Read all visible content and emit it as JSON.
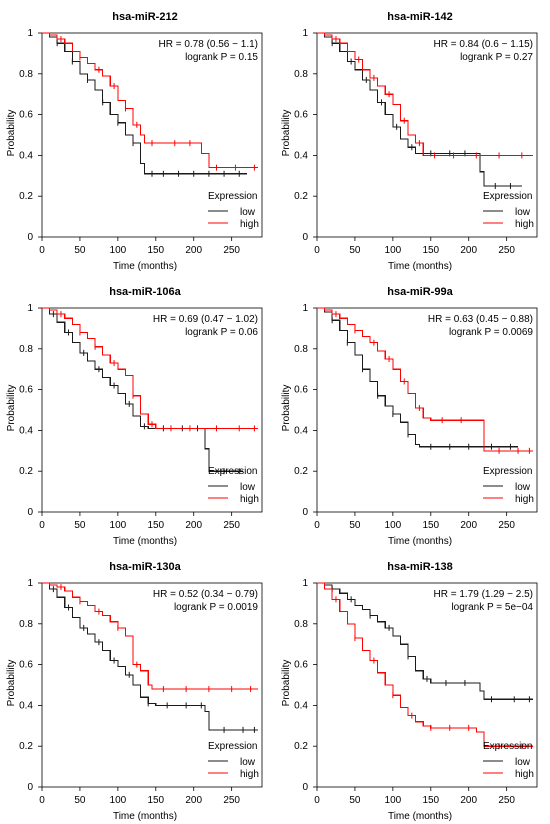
{
  "colors": {
    "low": "#1a1a1a",
    "high": "#ff0000"
  },
  "chart_data": [
    {
      "type": "line",
      "title": "hsa-miR-212",
      "xlabel": "Time (months)",
      "ylabel": "Probability",
      "xlim": [
        0,
        290
      ],
      "ylim": [
        0,
        1
      ],
      "xticks": [
        0,
        50,
        100,
        150,
        200,
        250
      ],
      "yticks": [
        0.0,
        0.2,
        0.4,
        0.6,
        0.8,
        1.0
      ],
      "stats": [
        "HR = 0.78 (0.56 − 1.1)",
        "logrank P = 0.15"
      ],
      "legend": {
        "title": "Expression",
        "position": "bottom-right",
        "entries": [
          "low",
          "high"
        ]
      },
      "series": [
        {
          "name": "low",
          "color": "#1a1a1a",
          "x": [
            0,
            10,
            20,
            30,
            40,
            50,
            60,
            70,
            80,
            90,
            100,
            110,
            120,
            130,
            135,
            140,
            170,
            270
          ],
          "y": [
            1.0,
            0.98,
            0.95,
            0.91,
            0.86,
            0.8,
            0.77,
            0.72,
            0.66,
            0.6,
            0.56,
            0.5,
            0.46,
            0.36,
            0.31,
            0.31,
            0.31,
            0.31
          ],
          "censor_x": [
            20,
            40,
            60,
            80,
            100,
            120,
            145,
            160,
            180,
            200,
            220,
            240,
            260
          ]
        },
        {
          "name": "high",
          "color": "#ff0000",
          "x": [
            0,
            10,
            20,
            30,
            40,
            50,
            60,
            70,
            80,
            90,
            100,
            110,
            120,
            130,
            135,
            160,
            200,
            210,
            220,
            285
          ],
          "y": [
            1.0,
            0.99,
            0.97,
            0.95,
            0.91,
            0.88,
            0.85,
            0.82,
            0.79,
            0.74,
            0.67,
            0.63,
            0.55,
            0.5,
            0.46,
            0.46,
            0.46,
            0.41,
            0.34,
            0.34
          ],
          "censor_x": [
            25,
            50,
            75,
            95,
            110,
            125,
            145,
            175,
            195,
            230,
            255,
            280
          ]
        }
      ]
    },
    {
      "type": "line",
      "title": "hsa-miR-142",
      "xlabel": "Time (months)",
      "ylabel": "Probability",
      "xlim": [
        0,
        290
      ],
      "ylim": [
        0,
        1
      ],
      "xticks": [
        0,
        50,
        100,
        150,
        200,
        250
      ],
      "yticks": [
        0.0,
        0.2,
        0.4,
        0.6,
        0.8,
        1.0
      ],
      "stats": [
        "HR = 0.84 (0.6 − 1.15)",
        "logrank P = 0.27"
      ],
      "legend": {
        "title": "Expression",
        "position": "bottom-right",
        "entries": [
          "low",
          "high"
        ]
      },
      "series": [
        {
          "name": "low",
          "color": "#1a1a1a",
          "x": [
            0,
            10,
            20,
            30,
            40,
            50,
            60,
            70,
            80,
            90,
            100,
            110,
            120,
            130,
            140,
            200,
            215,
            220,
            270
          ],
          "y": [
            1.0,
            0.98,
            0.95,
            0.91,
            0.86,
            0.82,
            0.77,
            0.72,
            0.66,
            0.6,
            0.54,
            0.48,
            0.44,
            0.41,
            0.41,
            0.41,
            0.32,
            0.25,
            0.25
          ],
          "censor_x": [
            20,
            45,
            65,
            85,
            105,
            125,
            150,
            175,
            195,
            235,
            255
          ]
        },
        {
          "name": "high",
          "color": "#ff0000",
          "x": [
            0,
            10,
            20,
            30,
            40,
            50,
            60,
            70,
            80,
            90,
            100,
            110,
            120,
            130,
            140,
            285
          ],
          "y": [
            1.0,
            0.99,
            0.97,
            0.95,
            0.91,
            0.87,
            0.82,
            0.78,
            0.74,
            0.7,
            0.65,
            0.57,
            0.5,
            0.46,
            0.4,
            0.4
          ],
          "censor_x": [
            25,
            55,
            75,
            95,
            115,
            135,
            155,
            180,
            210,
            240,
            270
          ]
        }
      ]
    },
    {
      "type": "line",
      "title": "hsa-miR-106a",
      "xlabel": "Time (months)",
      "ylabel": "Probability",
      "xlim": [
        0,
        290
      ],
      "ylim": [
        0,
        1
      ],
      "xticks": [
        0,
        50,
        100,
        150,
        200,
        250
      ],
      "yticks": [
        0.0,
        0.2,
        0.4,
        0.6,
        0.8,
        1.0
      ],
      "stats": [
        "HR = 0.69 (0.47 − 1.02)",
        "logrank P = 0.06"
      ],
      "legend": {
        "title": "Expression",
        "position": "bottom-right",
        "entries": [
          "low",
          "high"
        ]
      },
      "series": [
        {
          "name": "low",
          "color": "#1a1a1a",
          "x": [
            0,
            10,
            20,
            30,
            40,
            50,
            60,
            70,
            80,
            90,
            100,
            110,
            120,
            130,
            140,
            150,
            200,
            215,
            220,
            265
          ],
          "y": [
            1.0,
            0.97,
            0.93,
            0.88,
            0.83,
            0.78,
            0.74,
            0.7,
            0.66,
            0.62,
            0.58,
            0.53,
            0.47,
            0.42,
            0.41,
            0.41,
            0.41,
            0.31,
            0.2,
            0.2
          ],
          "censor_x": [
            15,
            35,
            55,
            75,
            95,
            115,
            135,
            160,
            185,
            205,
            240,
            260
          ]
        },
        {
          "name": "high",
          "color": "#ff0000",
          "x": [
            0,
            10,
            20,
            30,
            40,
            50,
            60,
            70,
            80,
            90,
            100,
            110,
            120,
            130,
            140,
            150,
            285
          ],
          "y": [
            1.0,
            0.99,
            0.97,
            0.95,
            0.92,
            0.88,
            0.85,
            0.81,
            0.77,
            0.73,
            0.7,
            0.67,
            0.57,
            0.48,
            0.43,
            0.41,
            0.41
          ],
          "censor_x": [
            25,
            50,
            70,
            95,
            120,
            145,
            170,
            195,
            230,
            260,
            280
          ]
        }
      ]
    },
    {
      "type": "line",
      "title": "hsa-miR-99a",
      "xlabel": "Time (months)",
      "ylabel": "Probability",
      "xlim": [
        0,
        290
      ],
      "ylim": [
        0,
        1
      ],
      "xticks": [
        0,
        50,
        100,
        150,
        200,
        250
      ],
      "yticks": [
        0.0,
        0.2,
        0.4,
        0.6,
        0.8,
        1.0
      ],
      "stats": [
        "HR = 0.63 (0.45 − 0.88)",
        "logrank P = 0.0069"
      ],
      "legend": {
        "title": "Expression",
        "position": "bottom-right",
        "entries": [
          "low",
          "high"
        ]
      },
      "series": [
        {
          "name": "low",
          "color": "#1a1a1a",
          "x": [
            0,
            10,
            20,
            30,
            40,
            50,
            60,
            70,
            80,
            90,
            100,
            110,
            120,
            130,
            135,
            145,
            265
          ],
          "y": [
            1.0,
            0.98,
            0.94,
            0.89,
            0.83,
            0.77,
            0.7,
            0.64,
            0.57,
            0.52,
            0.48,
            0.44,
            0.38,
            0.33,
            0.32,
            0.32,
            0.32
          ],
          "censor_x": [
            20,
            40,
            60,
            80,
            100,
            120,
            150,
            175,
            200,
            230,
            255
          ]
        },
        {
          "name": "high",
          "color": "#ff0000",
          "x": [
            0,
            10,
            20,
            30,
            40,
            50,
            60,
            70,
            80,
            90,
            100,
            110,
            120,
            130,
            140,
            150,
            215,
            220,
            285
          ],
          "y": [
            1.0,
            0.99,
            0.97,
            0.95,
            0.92,
            0.89,
            0.86,
            0.83,
            0.79,
            0.75,
            0.7,
            0.64,
            0.58,
            0.51,
            0.46,
            0.45,
            0.45,
            0.3,
            0.3
          ],
          "censor_x": [
            25,
            50,
            75,
            95,
            115,
            135,
            165,
            190,
            240,
            265,
            280
          ]
        }
      ]
    },
    {
      "type": "line",
      "title": "hsa-miR-130a",
      "xlabel": "Time (months)",
      "ylabel": "Probability",
      "xlim": [
        0,
        290
      ],
      "ylim": [
        0,
        1
      ],
      "xticks": [
        0,
        50,
        100,
        150,
        200,
        250
      ],
      "yticks": [
        0.0,
        0.2,
        0.4,
        0.6,
        0.8,
        1.0
      ],
      "stats": [
        "HR = 0.52 (0.34 − 0.79)",
        "logrank P = 0.0019"
      ],
      "legend": {
        "title": "Expression",
        "position": "bottom-right",
        "entries": [
          "low",
          "high"
        ]
      },
      "series": [
        {
          "name": "low",
          "color": "#1a1a1a",
          "x": [
            0,
            10,
            20,
            30,
            40,
            50,
            60,
            70,
            80,
            90,
            100,
            110,
            120,
            130,
            140,
            150,
            200,
            215,
            220,
            285
          ],
          "y": [
            1.0,
            0.97,
            0.93,
            0.88,
            0.83,
            0.78,
            0.75,
            0.71,
            0.67,
            0.62,
            0.59,
            0.55,
            0.5,
            0.44,
            0.41,
            0.4,
            0.4,
            0.37,
            0.28,
            0.28
          ],
          "censor_x": [
            15,
            35,
            55,
            75,
            95,
            115,
            140,
            165,
            190,
            210,
            240,
            265,
            280
          ]
        },
        {
          "name": "high",
          "color": "#ff0000",
          "x": [
            0,
            10,
            20,
            30,
            40,
            50,
            60,
            70,
            80,
            90,
            100,
            110,
            120,
            130,
            140,
            145,
            285
          ],
          "y": [
            1.0,
            0.99,
            0.98,
            0.96,
            0.93,
            0.91,
            0.89,
            0.86,
            0.84,
            0.81,
            0.78,
            0.74,
            0.6,
            0.57,
            0.5,
            0.48,
            0.48
          ],
          "censor_x": [
            25,
            50,
            75,
            100,
            125,
            160,
            190,
            220,
            250,
            275
          ]
        }
      ]
    },
    {
      "type": "line",
      "title": "hsa-miR-138",
      "xlabel": "Time (months)",
      "ylabel": "Probability",
      "xlim": [
        0,
        290
      ],
      "ylim": [
        0,
        1
      ],
      "xticks": [
        0,
        50,
        100,
        150,
        200,
        250
      ],
      "yticks": [
        0.0,
        0.2,
        0.4,
        0.6,
        0.8,
        1.0
      ],
      "stats": [
        "HR = 1.79 (1.29 − 2.5)",
        "logrank P = 5e−04"
      ],
      "legend": {
        "title": "Expression",
        "position": "bottom-right",
        "entries": [
          "low",
          "high"
        ]
      },
      "series": [
        {
          "name": "low",
          "color": "#1a1a1a",
          "x": [
            0,
            10,
            20,
            30,
            40,
            50,
            60,
            70,
            80,
            90,
            100,
            110,
            120,
            130,
            140,
            150,
            200,
            215,
            220,
            285
          ],
          "y": [
            1.0,
            0.99,
            0.97,
            0.95,
            0.92,
            0.89,
            0.87,
            0.84,
            0.81,
            0.78,
            0.74,
            0.7,
            0.64,
            0.57,
            0.53,
            0.51,
            0.51,
            0.47,
            0.43,
            0.43
          ],
          "censor_x": [
            20,
            45,
            70,
            95,
            120,
            145,
            170,
            195,
            230,
            260,
            280
          ]
        },
        {
          "name": "high",
          "color": "#ff0000",
          "x": [
            0,
            10,
            20,
            30,
            40,
            50,
            60,
            70,
            80,
            90,
            100,
            110,
            120,
            130,
            140,
            150,
            200,
            210,
            220,
            285
          ],
          "y": [
            1.0,
            0.97,
            0.92,
            0.86,
            0.8,
            0.73,
            0.67,
            0.62,
            0.56,
            0.5,
            0.45,
            0.39,
            0.35,
            0.32,
            0.3,
            0.29,
            0.29,
            0.27,
            0.2,
            0.2
          ],
          "censor_x": [
            25,
            50,
            75,
            100,
            125,
            150,
            175,
            200,
            240,
            270
          ]
        }
      ]
    }
  ]
}
